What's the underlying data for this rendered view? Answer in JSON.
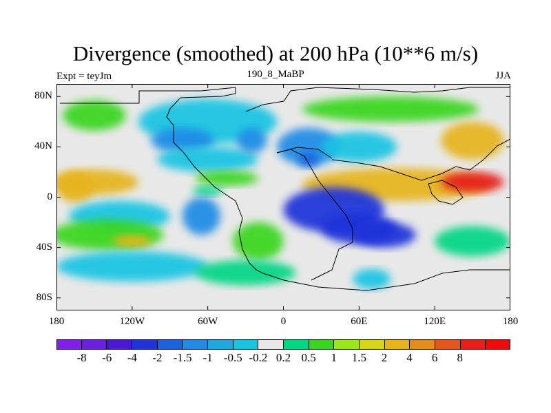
{
  "figure": {
    "title": "Divergence (smoothed) at 200 hPa (10**6 m/s)",
    "experiment": "Expt = teyJm",
    "run": "190_8_MaBP",
    "season": "JJA"
  },
  "axes": {
    "lat_labels": [
      "80N",
      "40N",
      "0",
      "40S",
      "80S"
    ],
    "lat_values": [
      80,
      40,
      0,
      -40,
      -80
    ],
    "lon_labels": [
      "180",
      "120W",
      "60W",
      "0",
      "60E",
      "120E",
      "180"
    ],
    "lon_values": [
      -180,
      -120,
      -60,
      0,
      60,
      120,
      180
    ],
    "lon_range": [
      -180,
      180
    ],
    "lat_range": [
      -90,
      90
    ]
  },
  "colorbar": {
    "colors": [
      "#7f1fe8",
      "#6a1ee0",
      "#4b18d4",
      "#1f33d9",
      "#1964dd",
      "#1f8be6",
      "#1fa8e0",
      "#19c4e3",
      "#e8e8e8",
      "#00d684",
      "#39d61f",
      "#9ce61f",
      "#d8d41a",
      "#e6b41a",
      "#e68c1a",
      "#e6551a",
      "#e61f1a",
      "#ee0a0a"
    ],
    "labels": [
      "-8",
      "-6",
      "-4",
      "-2",
      "-1.5",
      "-1",
      "-0.5",
      "-0.2",
      "0.2",
      "0.5",
      "1",
      "1.5",
      "2",
      "4",
      "6",
      "8"
    ]
  },
  "field_blobs": [
    {
      "lon": -150,
      "lat": 65,
      "rlon": 25,
      "rlat": 12,
      "level": "pos_mid"
    },
    {
      "lon": -60,
      "lat": 60,
      "rlon": 55,
      "rlat": 18,
      "level": "neg_weak"
    },
    {
      "lon": -80,
      "lat": 45,
      "rlon": 25,
      "rlat": 10,
      "level": "neg_mid"
    },
    {
      "lon": -60,
      "lat": 30,
      "rlon": 40,
      "rlat": 10,
      "level": "neg_weak"
    },
    {
      "lon": -25,
      "lat": 45,
      "rlon": 12,
      "rlat": 10,
      "level": "neg_mid"
    },
    {
      "lon": 20,
      "lat": 40,
      "rlon": 25,
      "rlat": 15,
      "level": "neg_mid"
    },
    {
      "lon": 20,
      "lat": 30,
      "rlon": 8,
      "rlat": 6,
      "level": "neg_strong"
    },
    {
      "lon": 60,
      "lat": 40,
      "rlon": 30,
      "rlat": 12,
      "level": "neg_weak"
    },
    {
      "lon": 85,
      "lat": 70,
      "rlon": 70,
      "rlat": 10,
      "level": "pos_mid"
    },
    {
      "lon": 150,
      "lat": 45,
      "rlon": 25,
      "rlat": 15,
      "level": "pos_strong"
    },
    {
      "lon": -150,
      "lat": 12,
      "rlon": 35,
      "rlat": 10,
      "level": "pos_strong"
    },
    {
      "lon": -165,
      "lat": 8,
      "rlon": 15,
      "rlat": 12,
      "level": "pos_strong"
    },
    {
      "lon": -45,
      "lat": 15,
      "rlon": 25,
      "rlat": 6,
      "level": "pos_mid"
    },
    {
      "lon": -60,
      "lat": 5,
      "rlon": 12,
      "rlat": 4,
      "level": "pos_weak"
    },
    {
      "lon": 90,
      "lat": 10,
      "rlon": 75,
      "rlat": 13,
      "level": "pos_strong"
    },
    {
      "lon": 150,
      "lat": 12,
      "rlon": 25,
      "rlat": 8,
      "level": "pos_max"
    },
    {
      "lon": 40,
      "lat": -10,
      "rlon": 40,
      "rlat": 18,
      "level": "neg_max"
    },
    {
      "lon": 60,
      "lat": -25,
      "rlon": 30,
      "rlat": 12,
      "level": "neg_max"
    },
    {
      "lon": 80,
      "lat": -30,
      "rlon": 25,
      "rlat": 10,
      "level": "neg_max"
    },
    {
      "lon": -130,
      "lat": -15,
      "rlon": 40,
      "rlat": 12,
      "level": "neg_weak"
    },
    {
      "lon": -65,
      "lat": -15,
      "rlon": 15,
      "rlat": 15,
      "level": "neg_mid"
    },
    {
      "lon": -140,
      "lat": -30,
      "rlon": 45,
      "rlat": 12,
      "level": "pos_mid"
    },
    {
      "lon": -120,
      "lat": -35,
      "rlon": 15,
      "rlat": 5,
      "level": "pos_strong"
    },
    {
      "lon": -20,
      "lat": -35,
      "rlon": 20,
      "rlat": 15,
      "level": "pos_mid"
    },
    {
      "lon": 150,
      "lat": -35,
      "rlon": 30,
      "rlat": 12,
      "level": "pos_weak"
    },
    {
      "lon": -120,
      "lat": -55,
      "rlon": 60,
      "rlat": 12,
      "level": "neg_weak"
    },
    {
      "lon": -30,
      "lat": -60,
      "rlon": 40,
      "rlat": 10,
      "level": "pos_weak"
    },
    {
      "lon": 70,
      "lat": -65,
      "rlon": 15,
      "rlat": 8,
      "level": "neg_weak"
    }
  ]
}
